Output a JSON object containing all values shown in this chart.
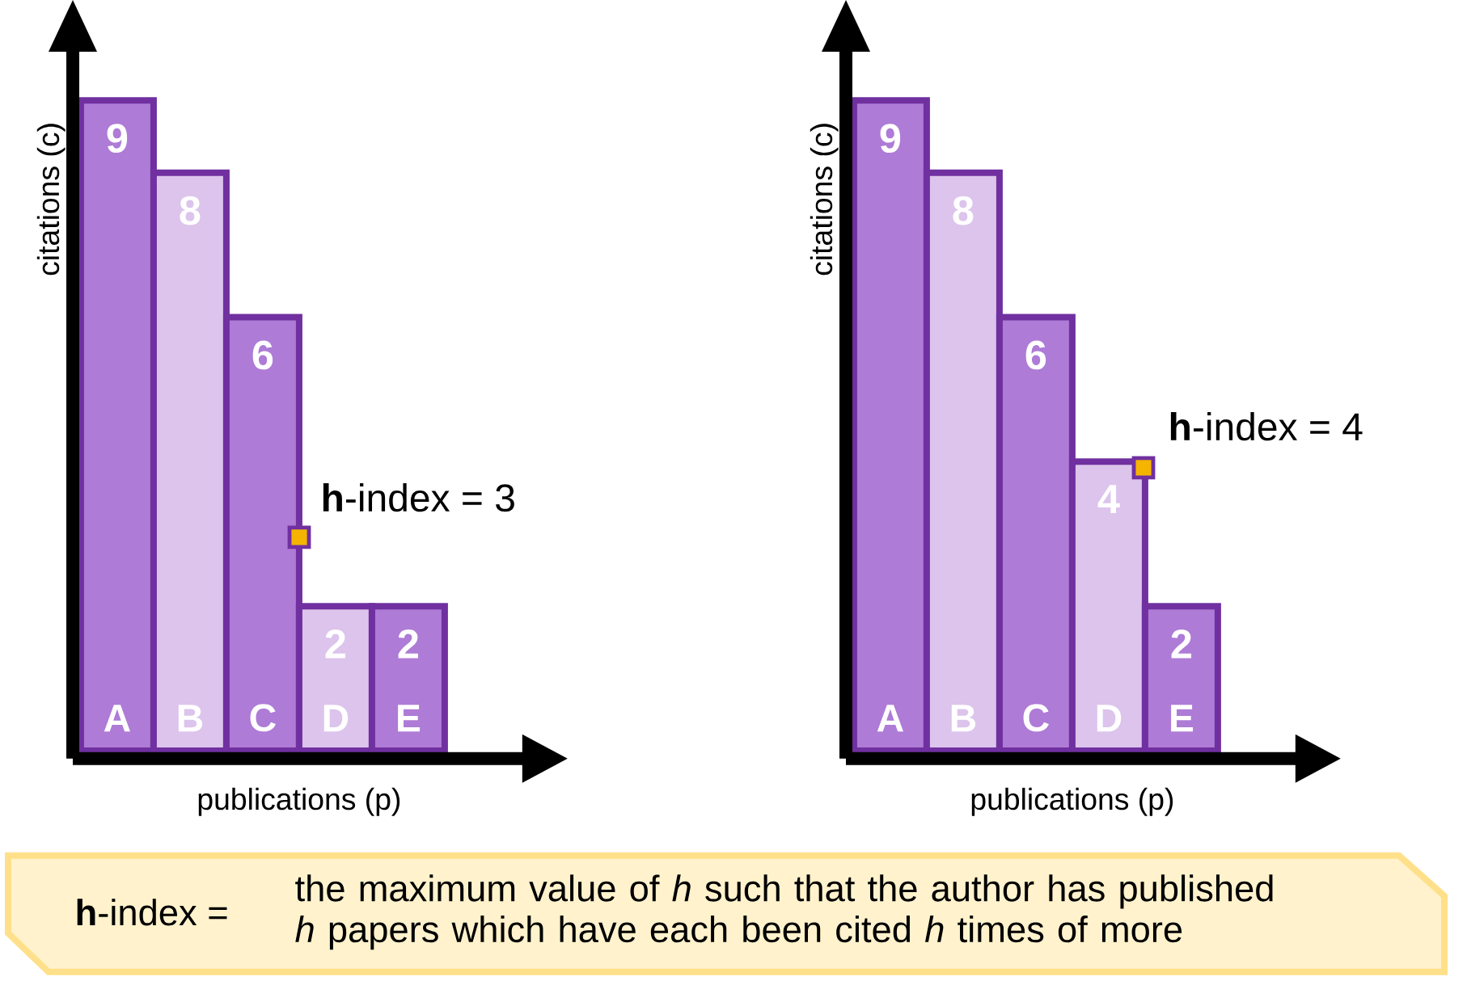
{
  "chart_data": [
    {
      "type": "bar",
      "categories": [
        "A",
        "B",
        "C",
        "D",
        "E"
      ],
      "values": [
        9,
        8,
        6,
        2,
        2
      ],
      "colors": [
        "#ae7bd6",
        "#dcc4ec",
        "#ae7bd6",
        "#dcc4ec",
        "#ae7bd6"
      ],
      "xlabel": "publications (p)",
      "ylabel": "citations (c)",
      "data_labels": true,
      "tick_labels": "x",
      "annotations": [
        "**h**-index = 3"
      ]
    },
    {
      "type": "bar",
      "categories": [
        "A",
        "B",
        "C",
        "D",
        "E"
      ],
      "values": [
        9,
        8,
        6,
        4,
        2
      ],
      "colors": [
        "#ae7bd6",
        "#dcc4ec",
        "#ae7bd6",
        "#dcc4ec",
        "#ae7bd6"
      ],
      "xlabel": "publications (p)",
      "ylabel": "citations (c)",
      "data_labels": true,
      "tick_labels": "x",
      "annotations": [
        "**h**-index = 4"
      ]
    },
    {
      "type": "other",
      "annotations": [
        "**h**-index =",
        "the maximum value of *h* such that the author has published *h* papers which have each been cited *h* times of more"
      ]
    }
  ]
}
